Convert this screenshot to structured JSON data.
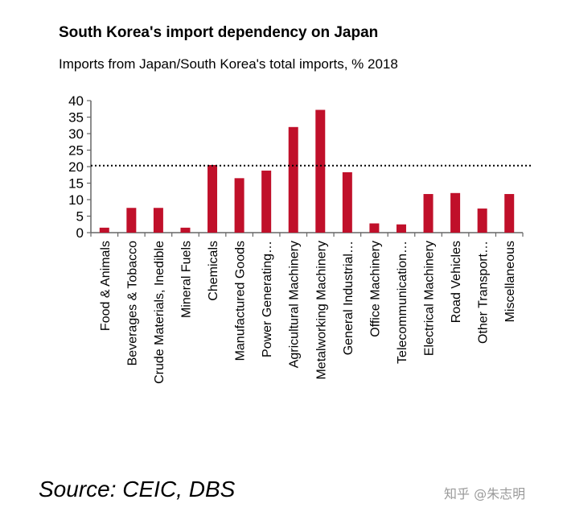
{
  "chart_data": {
    "type": "bar",
    "title": "South Korea's import dependency on Japan",
    "subtitle": "Imports from Japan/South Korea's total imports, % 2018",
    "categories": [
      "Food & Animals",
      "Beverages & Tobacco",
      "Crude Materials, Inedible",
      "Mineral Fuels",
      "Chemicals",
      "Manufactured Goods",
      "Power Generating…",
      "Agricultural Machinery",
      "Metalworking Machinery",
      "General Industrial…",
      "Office Machinery",
      "Telecommunication…",
      "Electrical Machinery",
      "Road Vehicles",
      "Other Transport…",
      "Miscellaneous"
    ],
    "values": [
      1.5,
      7.5,
      7.5,
      1.5,
      20.5,
      16.5,
      18.8,
      32,
      37.2,
      18.3,
      2.8,
      2.5,
      11.7,
      12,
      7.3,
      11.7
    ],
    "reference_line": 20.3,
    "ylim": [
      0,
      40
    ],
    "yticks": [
      0,
      5,
      10,
      15,
      20,
      25,
      30,
      35,
      40
    ],
    "bar_color": "#c0102a",
    "grid": false,
    "legend": "none"
  },
  "source": "Source: CEIC, DBS",
  "watermark": "知乎 @朱志明"
}
